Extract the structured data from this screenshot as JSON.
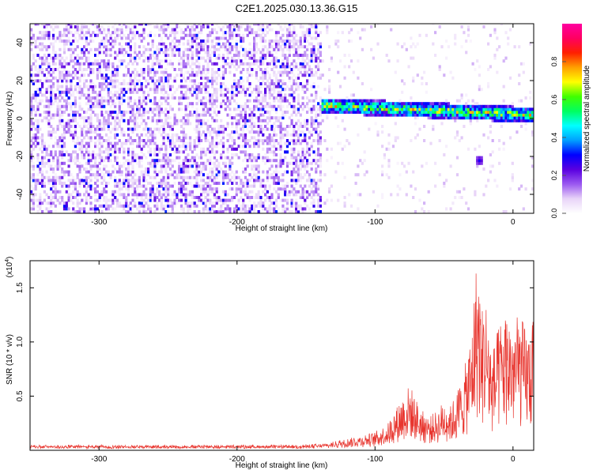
{
  "title": "C2E1.2025.030.13.36.G15",
  "chart_data": [
    {
      "type": "heatmap",
      "xlabel": "Height of straight line (km)",
      "ylabel": "Frequency (Hz)",
      "xlim": [
        -350,
        15
      ],
      "ylim": [
        -50,
        50
      ],
      "x_ticks": [
        -300,
        -200,
        -100,
        0
      ],
      "y_ticks": [
        -40,
        -20,
        0,
        20,
        40
      ],
      "colorbar": {
        "label": "Normalized spectral amplitude",
        "range": [
          0.0,
          1.0
        ],
        "ticks": [
          0.0,
          0.2,
          0.4,
          0.6,
          0.8
        ],
        "colors": [
          "#ffffff",
          "#e8d4f8",
          "#9b59f0",
          "#5a00e0",
          "#0000ff",
          "#00a0ff",
          "#00ffff",
          "#00ff60",
          "#40ff00",
          "#ffff00",
          "#ffa000",
          "#ff2000",
          "#ff0060",
          "#ff00a0"
        ]
      },
      "features": [
        {
          "x_range": [
            -350,
            -140
          ],
          "freq_range": [
            -50,
            50
          ],
          "amplitude": 0.15,
          "pattern": "noise"
        },
        {
          "x_range": [
            -140,
            15
          ],
          "freq_center": [
            6,
            1
          ],
          "amplitude": 0.7,
          "pattern": "signal-band"
        },
        {
          "x": -25,
          "freq": -23,
          "amplitude": 0.3,
          "pattern": "blob"
        }
      ],
      "grid": false
    },
    {
      "type": "line",
      "xlabel": "Height of straight line (km)",
      "ylabel": "SNR (10 * v/v)",
      "y_multiplier": "(x10",
      "y_exponent": "4",
      "xlim": [
        -350,
        15
      ],
      "ylim": [
        0,
        1.75
      ],
      "x_ticks": [
        -300,
        -200,
        -100,
        0
      ],
      "y_ticks": [
        0.5,
        1.0,
        1.5
      ],
      "line_color": "#e8352e",
      "envelope": {
        "x": [
          -350,
          -250,
          -160,
          -140,
          -130,
          -120,
          -110,
          -100,
          -90,
          -80,
          -75,
          -70,
          -65,
          -60,
          -55,
          -50,
          -45,
          -40,
          -35,
          -30,
          -27,
          -25,
          -23,
          -20,
          -15,
          -10,
          -5,
          0,
          5,
          10,
          15
        ],
        "y": [
          0.03,
          0.03,
          0.03,
          0.04,
          0.06,
          0.1,
          0.12,
          0.15,
          0.25,
          0.5,
          0.6,
          0.45,
          0.35,
          0.3,
          0.35,
          0.45,
          0.4,
          0.55,
          0.75,
          1.1,
          1.7,
          1.75,
          1.3,
          1.45,
          0.9,
          1.15,
          1.3,
          1.2,
          1.25,
          1.1,
          1.2
        ]
      },
      "grid": false
    }
  ]
}
